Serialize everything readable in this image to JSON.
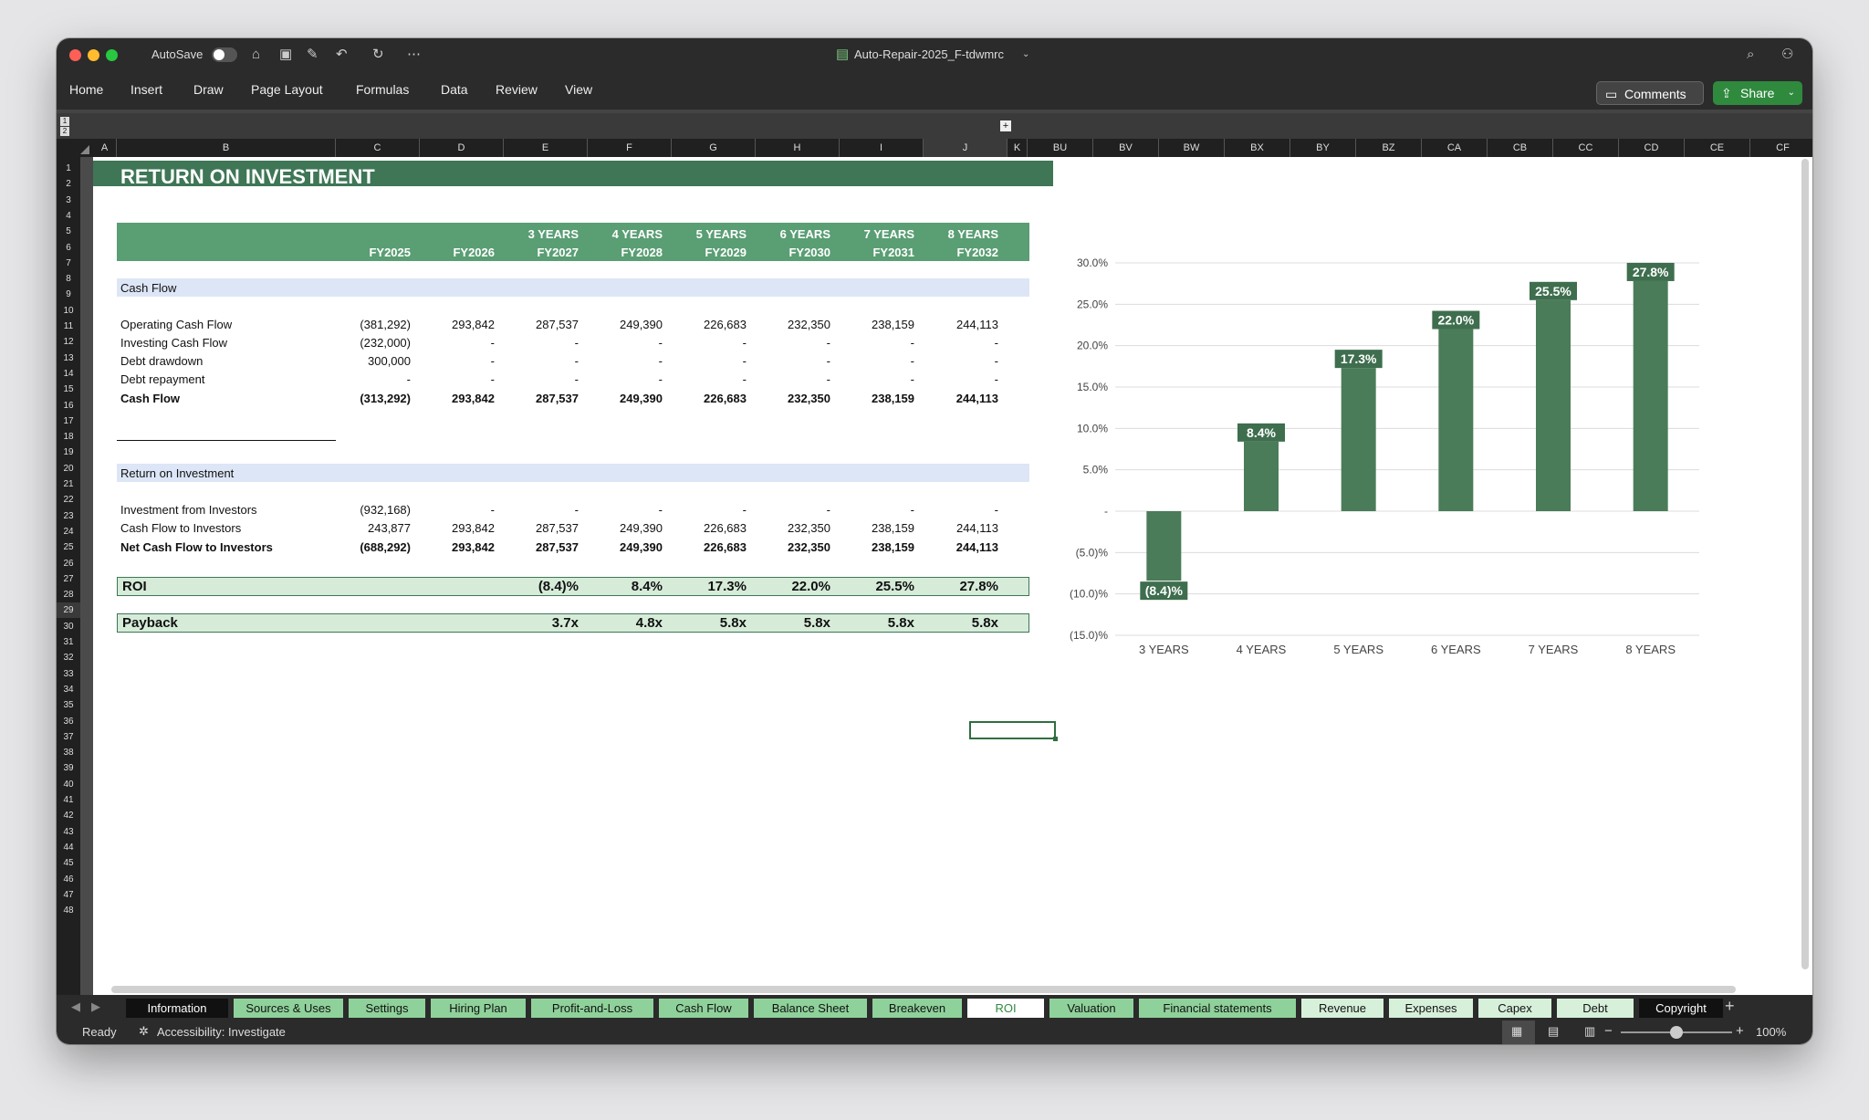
{
  "window": {
    "autosave_label": "AutoSave",
    "title": "Auto-Repair-2025_F-tdwmrc"
  },
  "ribbon": {
    "tabs": [
      "Home",
      "Insert",
      "Draw",
      "Page Layout",
      "Formulas",
      "Data",
      "Review",
      "View"
    ],
    "comments": "Comments",
    "share": "Share"
  },
  "outline_levels": [
    "1",
    "2"
  ],
  "columns": [
    {
      "id": "A",
      "w": 26
    },
    {
      "id": "B",
      "w": 240
    },
    {
      "id": "C",
      "w": 92
    },
    {
      "id": "D",
      "w": 92
    },
    {
      "id": "E",
      "w": 92
    },
    {
      "id": "F",
      "w": 92
    },
    {
      "id": "G",
      "w": 92
    },
    {
      "id": "H",
      "w": 92
    },
    {
      "id": "I",
      "w": 92
    },
    {
      "id": "J",
      "w": 92
    },
    {
      "id": "K",
      "w": 22
    },
    {
      "id": "BU",
      "w": 72
    },
    {
      "id": "BV",
      "w": 72
    },
    {
      "id": "BW",
      "w": 72
    },
    {
      "id": "BX",
      "w": 72
    },
    {
      "id": "BY",
      "w": 72
    },
    {
      "id": "BZ",
      "w": 72
    },
    {
      "id": "CA",
      "w": 72
    },
    {
      "id": "CB",
      "w": 72
    },
    {
      "id": "CC",
      "w": 72
    },
    {
      "id": "CD",
      "w": 72
    },
    {
      "id": "CE",
      "w": 72
    },
    {
      "id": "CF",
      "w": 72
    }
  ],
  "rows": [
    "1",
    "2",
    "3",
    "4",
    "5",
    "6",
    "7",
    "8",
    "9",
    "10",
    "11",
    "12",
    "13",
    "14",
    "15",
    "16",
    "17",
    "18",
    "19",
    "20",
    "21",
    "22",
    "23",
    "24",
    "25",
    "26",
    "27",
    "28",
    "29",
    "30",
    "31",
    "32",
    "33",
    "34",
    "35",
    "36",
    "37",
    "38",
    "39",
    "40",
    "41",
    "42",
    "43",
    "44",
    "45",
    "46",
    "47",
    "48"
  ],
  "sheet": {
    "title": "RETURN ON INVESTMENT",
    "hdr_top": [
      "",
      "",
      "3 YEARS",
      "4 YEARS",
      "5 YEARS",
      "6 YEARS",
      "7 YEARS",
      "8 YEARS"
    ],
    "hdr_fy": [
      "FY2025",
      "FY2026",
      "FY2027",
      "FY2028",
      "FY2029",
      "FY2030",
      "FY2031",
      "FY2032"
    ],
    "section_cashflow": "Cash Flow",
    "cashflow_rows": [
      {
        "label": "Operating Cash Flow",
        "vals": [
          "(381,292)",
          "293,842",
          "287,537",
          "249,390",
          "226,683",
          "232,350",
          "238,159",
          "244,113"
        ]
      },
      {
        "label": "Investing Cash Flow",
        "vals": [
          "(232,000)",
          "-",
          "-",
          "-",
          "-",
          "-",
          "-",
          "-"
        ]
      },
      {
        "label": "Debt drawdown",
        "vals": [
          "300,000",
          "-",
          "-",
          "-",
          "-",
          "-",
          "-",
          "-"
        ]
      },
      {
        "label": "Debt repayment",
        "vals": [
          "-",
          "-",
          "-",
          "-",
          "-",
          "-",
          "-",
          "-"
        ]
      }
    ],
    "cashflow_total": {
      "label": "Cash Flow",
      "vals": [
        "(313,292)",
        "293,842",
        "287,537",
        "249,390",
        "226,683",
        "232,350",
        "238,159",
        "244,113"
      ]
    },
    "section_roi": "Return on Investment",
    "roi_rows": [
      {
        "label": "Investment from Investors",
        "vals": [
          "(932,168)",
          "-",
          "-",
          "-",
          "-",
          "-",
          "-",
          "-"
        ]
      },
      {
        "label": "Cash Flow to Investors",
        "vals": [
          "243,877",
          "293,842",
          "287,537",
          "249,390",
          "226,683",
          "232,350",
          "238,159",
          "244,113"
        ]
      }
    ],
    "roi_total": {
      "label": "Net Cash Flow to Investors",
      "vals": [
        "(688,292)",
        "293,842",
        "287,537",
        "249,390",
        "226,683",
        "232,350",
        "238,159",
        "244,113"
      ]
    },
    "roi_label": "ROI",
    "roi_vals": [
      "(8.4)%",
      "8.4%",
      "17.3%",
      "22.0%",
      "25.5%",
      "27.8%"
    ],
    "payback_label": "Payback",
    "payback_vals": [
      "3.7x",
      "4.8x",
      "5.8x",
      "5.8x",
      "5.8x",
      "5.8x"
    ]
  },
  "chart_data": {
    "type": "bar",
    "categories": [
      "3 YEARS",
      "4 YEARS",
      "5 YEARS",
      "6 YEARS",
      "7 YEARS",
      "8 YEARS"
    ],
    "values": [
      -8.4,
      8.4,
      17.3,
      22.0,
      25.5,
      27.8
    ],
    "data_labels": [
      "(8.4)%",
      "8.4%",
      "17.3%",
      "22.0%",
      "25.5%",
      "27.8%"
    ],
    "ylim": [
      -15,
      30
    ],
    "yticks": [
      30,
      25,
      20,
      15,
      10,
      5,
      0,
      -5,
      -10,
      -15
    ],
    "ytick_labels": [
      "30.0%",
      "25.0%",
      "20.0%",
      "15.0%",
      "10.0%",
      "5.0%",
      "-",
      "(5.0)%",
      "(10.0)%",
      "(15.0)%"
    ],
    "grid": true,
    "bar_color": "#4a7c59"
  },
  "sheet_tabs": [
    {
      "label": "Information",
      "style": "dark"
    },
    {
      "label": "Sources & Uses",
      "style": "green"
    },
    {
      "label": "Settings",
      "style": "green"
    },
    {
      "label": "Hiring Plan",
      "style": "green"
    },
    {
      "label": "Profit-and-Loss",
      "style": "green"
    },
    {
      "label": "Cash Flow",
      "style": "green"
    },
    {
      "label": "Balance Sheet",
      "style": "green"
    },
    {
      "label": "Breakeven",
      "style": "green"
    },
    {
      "label": "ROI",
      "style": "active"
    },
    {
      "label": "Valuation",
      "style": "green"
    },
    {
      "label": "Financial statements",
      "style": "green"
    },
    {
      "label": "Revenue",
      "style": "light"
    },
    {
      "label": "Expenses",
      "style": "light"
    },
    {
      "label": "Capex",
      "style": "light"
    },
    {
      "label": "Debt",
      "style": "light"
    },
    {
      "label": "Copyright",
      "style": "dark"
    }
  ],
  "status": {
    "ready": "Ready",
    "accessibility": "Accessibility: Investigate",
    "zoom": "100%"
  },
  "colors": {
    "header_green": "#5a9e74",
    "dark_green": "#3e7656",
    "section_blue": "#dde6f7",
    "light_green": "#d6ecd9"
  }
}
